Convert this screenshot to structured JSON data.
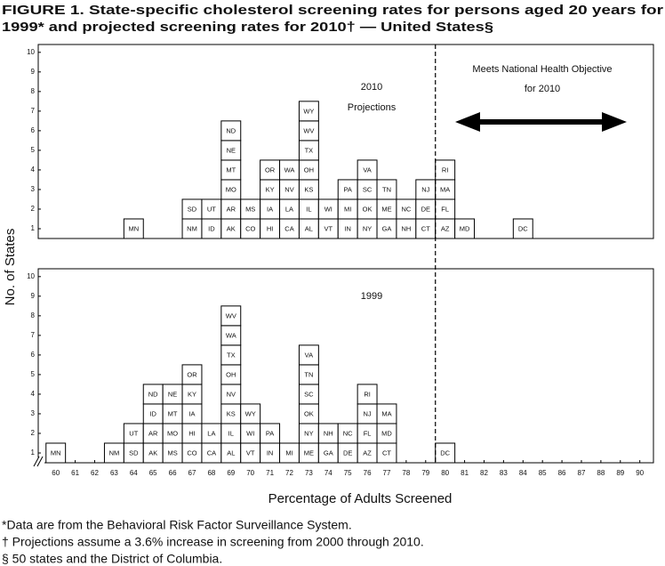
{
  "title": [
    "FIGURE 1. State-specific cholesterol screening rates for persons aged   20 years for",
    "1999* and projected screening rates for 2010† — United States§"
  ],
  "y_label": "No. of States",
  "x_label": "Percentage of Adults Screened",
  "footnotes": [
    "*Data are from the Behavioral Risk Factor Surveillance System.",
    "† Projections assume a 3.6% increase in screening from 2000 through 2010.",
    "§ 50 states and the District of Columbia."
  ],
  "objective_threshold": 79.5,
  "objective_annotation": [
    "Meets National Health Objective",
    "for 2010"
  ],
  "chart_data": [
    {
      "type": "stacked-labels",
      "annotation": [
        "2010",
        "Projections"
      ],
      "xlim": [
        59.1,
        90.7
      ],
      "ylim": [
        0.5,
        10.4
      ],
      "yticks": [
        1,
        2,
        3,
        4,
        5,
        6,
        7,
        8,
        9,
        10
      ],
      "columns": [
        {
          "x": 64,
          "labels": [
            "MN"
          ]
        },
        {
          "x": 67,
          "labels": [
            "NM",
            "SD"
          ]
        },
        {
          "x": 68,
          "labels": [
            "ID",
            "UT"
          ]
        },
        {
          "x": 69,
          "labels": [
            "AK",
            "AR",
            "MO",
            "MT",
            "NE",
            "ND"
          ]
        },
        {
          "x": 70,
          "labels": [
            "CO",
            "MS"
          ]
        },
        {
          "x": 71,
          "labels": [
            "HI",
            "IA",
            "KY",
            "OR"
          ]
        },
        {
          "x": 72,
          "labels": [
            "CA",
            "LA",
            "NV",
            "WA"
          ]
        },
        {
          "x": 73,
          "labels": [
            "AL",
            "IL",
            "KS",
            "OH",
            "TX",
            "WV",
            "WY"
          ]
        },
        {
          "x": 74,
          "labels": [
            "VT",
            "WI"
          ]
        },
        {
          "x": 75,
          "labels": [
            "IN",
            "MI",
            "PA"
          ]
        },
        {
          "x": 76,
          "labels": [
            "NY",
            "OK",
            "SC",
            "VA"
          ]
        },
        {
          "x": 77,
          "labels": [
            "GA",
            "ME",
            "TN"
          ]
        },
        {
          "x": 78,
          "labels": [
            "NH",
            "NC"
          ]
        },
        {
          "x": 79,
          "labels": [
            "CT",
            "DE",
            "NJ"
          ]
        },
        {
          "x": 80,
          "labels": [
            "AZ",
            "FL",
            "MA",
            "RI"
          ]
        },
        {
          "x": 81,
          "labels": [
            "MD"
          ]
        },
        {
          "x": 84,
          "labels": [
            "DC"
          ]
        }
      ]
    },
    {
      "type": "stacked-labels",
      "annotation": [
        "1999"
      ],
      "xlim": [
        59.1,
        90.7
      ],
      "ylim": [
        0.5,
        10.4
      ],
      "yticks": [
        1,
        2,
        3,
        4,
        5,
        6,
        7,
        8,
        9,
        10
      ],
      "xticks": [
        60,
        61,
        62,
        63,
        64,
        65,
        66,
        67,
        68,
        69,
        70,
        71,
        72,
        73,
        74,
        75,
        76,
        77,
        78,
        79,
        80,
        81,
        82,
        83,
        84,
        85,
        86,
        87,
        88,
        89,
        90
      ],
      "columns": [
        {
          "x": 60,
          "labels": [
            "MN"
          ]
        },
        {
          "x": 63,
          "labels": [
            "NM"
          ]
        },
        {
          "x": 64,
          "labels": [
            "SD",
            "UT"
          ]
        },
        {
          "x": 65,
          "labels": [
            "AK",
            "AR",
            "ID",
            "ND"
          ]
        },
        {
          "x": 66,
          "labels": [
            "MS",
            "MO",
            "MT",
            "NE"
          ]
        },
        {
          "x": 67,
          "labels": [
            "CO",
            "HI",
            "IA",
            "KY",
            "OR"
          ]
        },
        {
          "x": 68,
          "labels": [
            "CA",
            "LA"
          ]
        },
        {
          "x": 69,
          "labels": [
            "AL",
            "IL",
            "KS",
            "NV",
            "OH",
            "TX",
            "WA",
            "WV"
          ]
        },
        {
          "x": 70,
          "labels": [
            "VT",
            "WI",
            "WY"
          ]
        },
        {
          "x": 71,
          "labels": [
            "IN",
            "PA"
          ]
        },
        {
          "x": 72,
          "labels": [
            "MI"
          ]
        },
        {
          "x": 73,
          "labels": [
            "ME",
            "NY",
            "OK",
            "SC",
            "TN",
            "VA"
          ]
        },
        {
          "x": 74,
          "labels": [
            "GA",
            "NH"
          ]
        },
        {
          "x": 75,
          "labels": [
            "DE",
            "NC"
          ]
        },
        {
          "x": 76,
          "labels": [
            "AZ",
            "FL",
            "NJ",
            "RI"
          ]
        },
        {
          "x": 77,
          "labels": [
            "CT",
            "MD",
            "MA"
          ]
        },
        {
          "x": 80,
          "labels": [
            "DC"
          ]
        }
      ]
    }
  ]
}
